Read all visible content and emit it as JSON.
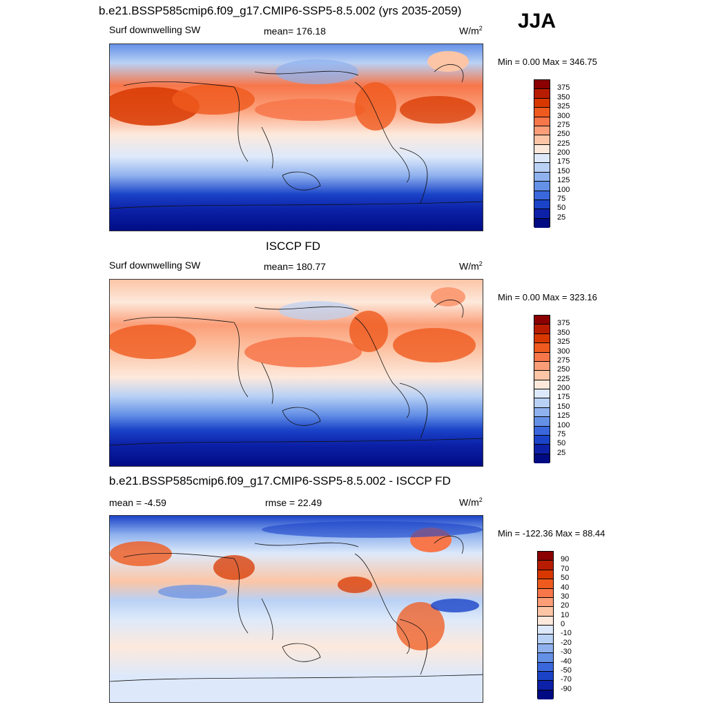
{
  "season": "JJA",
  "panels": [
    {
      "title": "b.e21.BSSP585cmip6.f09_g17.CMIP6-SSP5-8.5.002 (yrs 2035-2059)",
      "left_label": "Surf downwelling SW",
      "center_label": "mean= 176.18",
      "unit_base": "W/m",
      "unit_sup": "2",
      "minmax": "Min =   0.00 Max = 346.75",
      "colorbar": {
        "labels": [
          "375",
          "350",
          "325",
          "300",
          "275",
          "250",
          "225",
          "200",
          "175",
          "150",
          "125",
          "100",
          "75",
          "50",
          "25"
        ],
        "colors": [
          "#8b0000",
          "#b81c00",
          "#d83800",
          "#ef5a1e",
          "#f7764a",
          "#fb9e78",
          "#fcc5a6",
          "#fde9dc",
          "#dde9fa",
          "#b9d1f5",
          "#8fb1ee",
          "#6490e6",
          "#3a67dc",
          "#1a43c8",
          "#0c21a8",
          "#000a82"
        ]
      }
    },
    {
      "title": "ISCCP FD",
      "left_label": "Surf downwelling SW",
      "center_label": "mean= 180.77",
      "unit_base": "W/m",
      "unit_sup": "2",
      "minmax": "Min =   0.00 Max = 323.16",
      "colorbar": {
        "labels": [
          "375",
          "350",
          "325",
          "300",
          "275",
          "250",
          "225",
          "200",
          "175",
          "150",
          "125",
          "100",
          "75",
          "50",
          "25"
        ],
        "colors": [
          "#8b0000",
          "#b81c00",
          "#d83800",
          "#ef5a1e",
          "#f7764a",
          "#fb9e78",
          "#fcc5a6",
          "#fde9dc",
          "#dde9fa",
          "#b9d1f5",
          "#8fb1ee",
          "#6490e6",
          "#3a67dc",
          "#1a43c8",
          "#0c21a8",
          "#000a82"
        ]
      }
    },
    {
      "title": "b.e21.BSSP585cmip6.f09_g17.CMIP6-SSP5-8.5.002 - ISCCP FD",
      "left_label": "mean =  -4.59",
      "center_label": "rmse =  22.49",
      "unit_base": "W/m",
      "unit_sup": "2",
      "minmax": "Min = -122.36 Max =  88.44",
      "colorbar": {
        "labels": [
          "90",
          "70",
          "50",
          "40",
          "30",
          "20",
          "10",
          "0",
          "-10",
          "-20",
          "-30",
          "-40",
          "-50",
          "-70",
          "-90"
        ],
        "colors": [
          "#8b0000",
          "#b81c00",
          "#d83800",
          "#ef5a1e",
          "#f7764a",
          "#fb9e78",
          "#fcc5a6",
          "#fde9dc",
          "#dde9fa",
          "#b9d1f5",
          "#8fb1ee",
          "#6490e6",
          "#3a67dc",
          "#1a43c8",
          "#0c21a8",
          "#000a82"
        ]
      }
    }
  ]
}
